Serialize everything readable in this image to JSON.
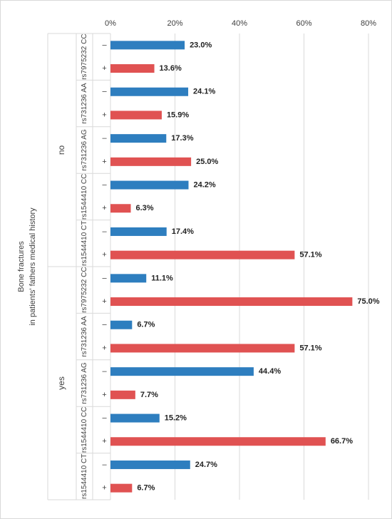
{
  "chart_data": {
    "type": "bar",
    "orientation": "horizontal",
    "y_label": [
      "Bone fractures",
      "in patients' fathers medical history"
    ],
    "groups": [
      {
        "name": "no",
        "categories": [
          "rs7975232 CC",
          "rs731236 AA",
          "rs731236 AG",
          "rs1544410 CC",
          "rs1544410 CT"
        ]
      },
      {
        "name": "yes",
        "categories": [
          "rs7975232 CC",
          "rs731236 AA",
          "rs731236 AG",
          "rs1544410 CC",
          "rs1544410 CT"
        ]
      }
    ],
    "series": [
      {
        "name": "–",
        "color": "#2e7ebf",
        "values": [
          23.0,
          24.1,
          17.3,
          24.2,
          17.4,
          11.1,
          6.7,
          44.4,
          15.2,
          24.7
        ],
        "value_labels": [
          "23.0%",
          "24.1%",
          "17.3%",
          "24.2%",
          "17.4%",
          "11.1%",
          "6.7%",
          "44.4%",
          "15.2%",
          "24.7%"
        ]
      },
      {
        "name": "+",
        "color": "#e05252",
        "values": [
          13.6,
          15.9,
          25.0,
          6.3,
          57.1,
          75.0,
          57.1,
          7.7,
          66.7,
          6.7
        ],
        "value_labels": [
          "13.6%",
          "15.9%",
          "25.0%",
          "6.3%",
          "57.1%",
          "75.0%",
          "57.1%",
          "7.7%",
          "66.7%",
          "6.7%"
        ]
      }
    ],
    "xlim": [
      0,
      80
    ],
    "xticks": [
      {
        "value": 0,
        "label": "0%"
      },
      {
        "value": 20,
        "label": "20%"
      },
      {
        "value": 40,
        "label": "40%"
      },
      {
        "value": 60,
        "label": "60%"
      },
      {
        "value": 80,
        "label": "80%"
      }
    ],
    "grid": true
  }
}
